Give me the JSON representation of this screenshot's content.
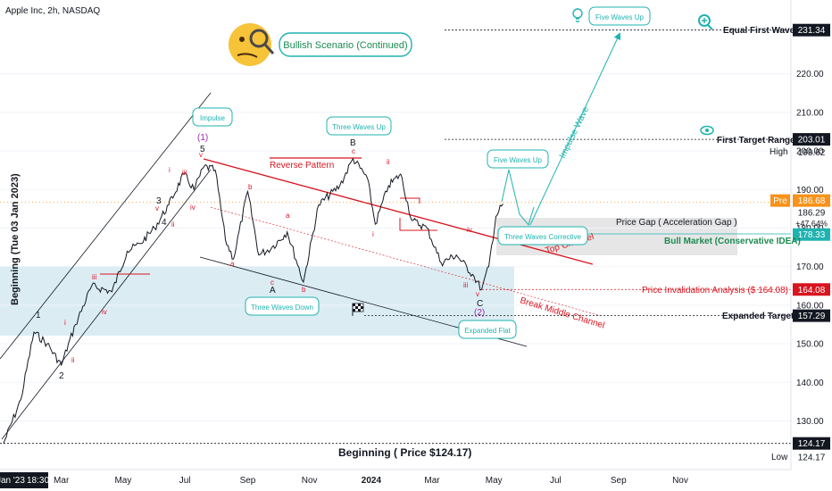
{
  "header": {
    "symbol_line": "Apple Inc, 2h, NASDAQ"
  },
  "colors": {
    "teal": "#1fb3b0",
    "red": "#d8141f",
    "dark": "#131722",
    "pre_orange": "#f7931a",
    "zone_blue": "#cfe7ef",
    "gap_gray": "#dcdcdc",
    "wave_red": "#e0162b",
    "wave_purple": "#9c27b0"
  },
  "price_axis": {
    "ticks": [
      130,
      140,
      150,
      160,
      170,
      180,
      190,
      200,
      210,
      220
    ],
    "tick_labels": [
      "130.00",
      "140.00",
      "150.00",
      "160.00",
      "170.00",
      "180.00",
      "190.00",
      "200.00",
      "210.00",
      "220.00"
    ],
    "range": [
      120,
      238
    ]
  },
  "time_axis": {
    "first_label": "Jan '23",
    "start_time": "18:30",
    "months": [
      "Mar",
      "May",
      "Jul",
      "Sep",
      "Nov",
      "2024",
      "Mar",
      "May",
      "Jul",
      "Sep",
      "Nov"
    ]
  },
  "levels": [
    {
      "name": "Equal First Wave",
      "price": 231.34,
      "label": "231.34"
    },
    {
      "name": "First Target Range",
      "price": 203.01,
      "label": "203.01"
    },
    {
      "name": "High",
      "price": 199.62,
      "label": "199.62"
    },
    {
      "name": "Pre",
      "price": 186.68,
      "label": "186.68"
    },
    {
      "name": "Last",
      "price": 186.29,
      "label": "186.29",
      "change": "+47.64%"
    },
    {
      "name": "Bull Market (Conservative IDEA)",
      "price": 178.33,
      "label": "178.33"
    },
    {
      "name": "Price Invalidation Analysis ($ 164.08)",
      "price": 164.08,
      "label": "164.08"
    },
    {
      "name": "Expanded Target",
      "price": 157.29,
      "label": "157.29"
    },
    {
      "name": "Beginning ( Price $124.17)",
      "price": 124.17,
      "label": "124.17"
    },
    {
      "name": "Low",
      "price": 124.17,
      "label": "124.17"
    }
  ],
  "texts": {
    "pre": "Pre",
    "high": "High",
    "low": "Low",
    "y_axis_title": "Beginning (Tue 03 Jan 2023)",
    "price_gap": "Price Gap ( Acceleration Gap )",
    "bull_market": "Bull Market (Conservative IDEA)",
    "invalidation": "Price Invalidation Analysis ($ 164.08)",
    "expanded_target": "Expanded Target",
    "first_target": "First Target Range",
    "equal_first_wave": "Equal First Wave",
    "beginning": "Beginning ( Price $124.17)",
    "reverse_pattern": "Reverse Pattern",
    "impulse_wave": "Impulse Wave",
    "top_channel": "Top Channel",
    "break_middle": "Break Middle Channel"
  },
  "callouts": {
    "bullish": "Bullish Scenario (Continued)",
    "impulse": "Impulse",
    "three_waves_up": "Three Waves Up",
    "five_waves_up_mid": "Five Waves Up",
    "five_waves_up_top": "Five Waves Up",
    "three_waves_down": "Three Waves Down",
    "three_waves_corrective": "Three Waves Corrective",
    "expanded_flat": "Expanded Flat"
  },
  "wave_labels": {
    "w1": "1",
    "w2": "2",
    "w3": "3",
    "w4": "4",
    "w5": "5",
    "p1": "(1)",
    "p2": "(2)",
    "A": "A",
    "B": "B",
    "C": "C",
    "a": "a",
    "b": "b",
    "c": "c",
    "i": "i",
    "ii": "ii",
    "iii": "iii",
    "iv": "iv",
    "v": "v"
  },
  "chart_data": {
    "type": "line",
    "title": "Apple Inc, 2h, NASDAQ",
    "ylabel": "Beginning (Tue 03 Jan 2023)",
    "ylim": [
      120,
      238
    ],
    "x_ticks": [
      "Jan '23",
      "Mar",
      "May",
      "Jul",
      "Sep",
      "Nov",
      "2024",
      "Mar",
      "May",
      "Jul",
      "Sep",
      "Nov"
    ],
    "series": [
      {
        "x": [
          "2023-01-03",
          "2023-01-20",
          "2023-02-02",
          "2023-02-15",
          "2023-03-01",
          "2023-03-15",
          "2023-03-31",
          "2023-04-20",
          "2023-05-05",
          "2023-05-18",
          "2023-06-01",
          "2023-06-15",
          "2023-06-30",
          "2023-07-10",
          "2023-07-20",
          "2023-07-31",
          "2023-08-10",
          "2023-08-18",
          "2023-09-01",
          "2023-09-12",
          "2023-09-25",
          "2023-10-10",
          "2023-10-26",
          "2023-11-10",
          "2023-12-01",
          "2023-12-14",
          "2023-12-28",
          "2024-01-05",
          "2024-01-18",
          "2024-01-30",
          "2024-02-10",
          "2024-02-25",
          "2024-03-10",
          "2024-03-25",
          "2024-04-10",
          "2024-04-19",
          "2024-04-26",
          "2024-05-03",
          "2024-05-10"
        ],
        "values": [
          124.17,
          135.5,
          153,
          150,
          144.5,
          155,
          165,
          163.5,
          174,
          176,
          180,
          186,
          194,
          190,
          196,
          195,
          177,
          172,
          189.5,
          173,
          175,
          179,
          166,
          186,
          191,
          198,
          193,
          181,
          191,
          194,
          182,
          180,
          171,
          173,
          168,
          164.08,
          170,
          183,
          186.29
        ]
      }
    ]
  }
}
